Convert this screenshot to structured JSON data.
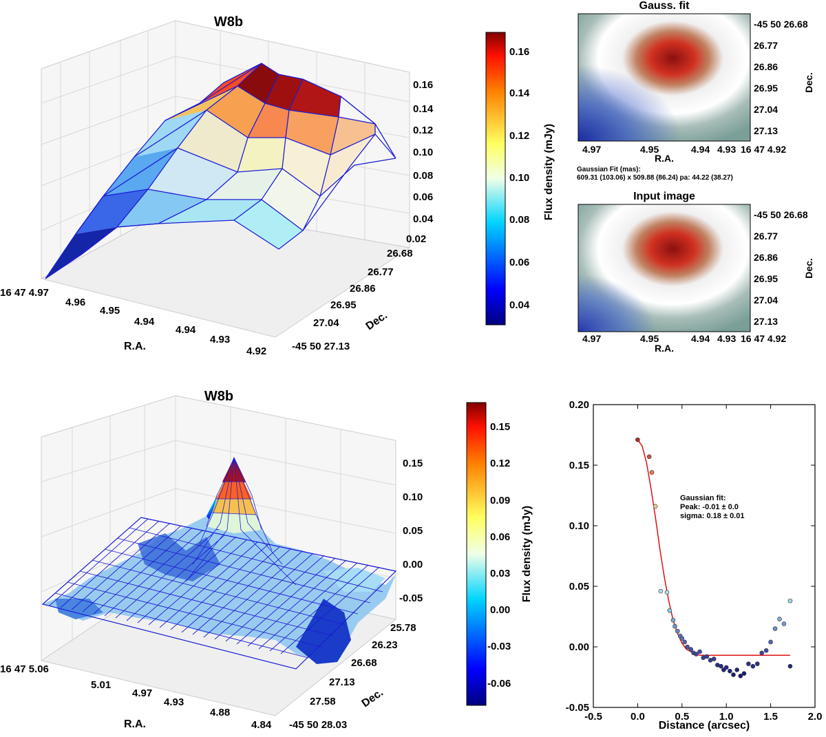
{
  "colors": {
    "wire": "#1c1cd6",
    "fit_line": "#e01010",
    "grid": "#d8d8d8",
    "pane": "#f4f4f4"
  },
  "top_surface": {
    "title": "W8b",
    "xlabel": "R.A.",
    "ylabel": "Dec.",
    "ra_ticks": [
      "16 47 4.97",
      "4.96",
      "4.95",
      "4.94",
      "4.94",
      "4.93",
      "4.92"
    ],
    "dec_ticks": [
      "26.68",
      "26.77",
      "26.86",
      "26.95",
      "27.04",
      "-45 50 27.13"
    ],
    "z_ticks": [
      "0.16",
      "0.14",
      "0.12",
      "0.10",
      "0.08",
      "0.06",
      "0.04",
      "0.02"
    ]
  },
  "top_colorbar": {
    "label": "Flux density (mJy)",
    "ticks": [
      "0.16",
      "0.14",
      "0.12",
      "0.10",
      "0.08",
      "0.06",
      "0.04"
    ]
  },
  "gauss_fit_panel": {
    "title": "Gauss. fit",
    "xlabel": "R.A.",
    "ylabel": "Dec.",
    "x_ticks": [
      "4.97",
      "4.95",
      "4.94",
      "4.93",
      "16 47 4.92"
    ],
    "y_ticks": [
      "-45 50 26.68",
      "26.77",
      "26.86",
      "26.95",
      "27.04",
      "27.13"
    ],
    "fit_caption_1": "Gaussian Fit (mas):",
    "fit_caption_2": "609.31 (103.06) x 509.88 (86.24) pa: 44.22 (38.27)"
  },
  "input_panel": {
    "title": "Input image",
    "xlabel": "R.A.",
    "ylabel": "Dec.",
    "x_ticks": [
      "4.97",
      "4.95",
      "4.94",
      "4.93",
      "16 47 4.92"
    ],
    "y_ticks": [
      "-45 50 26.68",
      "26.77",
      "26.86",
      "26.95",
      "27.04",
      "27.13"
    ]
  },
  "bottom_surface": {
    "title": "W8b",
    "xlabel": "R.A.",
    "ylabel": "Dec.",
    "ra_ticks": [
      "16 47 5.06",
      "5.01",
      "4.97",
      "4.93",
      "4.88",
      "4.84"
    ],
    "dec_ticks": [
      "25.78",
      "26.23",
      "26.68",
      "27.13",
      "27.58",
      "-45 50 28.03"
    ],
    "z_ticks": [
      "0.15",
      "0.10",
      "0.05",
      "0.00",
      "-0.05"
    ]
  },
  "bottom_colorbar": {
    "label": "Flux density (mJy)",
    "ticks": [
      "0.15",
      "0.12",
      "0.09",
      "0.06",
      "0.03",
      "0.00",
      "-0.03",
      "-0.06"
    ]
  },
  "chart_data": [
    {
      "type": "scatter",
      "title": "",
      "xlabel": "Distance (arcsec)",
      "ylabel": "",
      "xlim": [
        -0.5,
        2.0
      ],
      "ylim": [
        -0.05,
        0.2
      ],
      "x_ticks": [
        "-0.5",
        "0.0",
        "0.5",
        "1.0",
        "1.5",
        "2.0"
      ],
      "y_ticks": [
        "0.20",
        "0.15",
        "0.10",
        "0.05",
        "0.00",
        "-0.05"
      ],
      "x": [
        0.0,
        0.13,
        0.16,
        0.2,
        0.26,
        0.33,
        0.36,
        0.4,
        0.42,
        0.45,
        0.48,
        0.5,
        0.53,
        0.56,
        0.6,
        0.63,
        0.66,
        0.7,
        0.74,
        0.78,
        0.82,
        0.86,
        0.9,
        0.94,
        0.97,
        1.0,
        1.04,
        1.08,
        1.12,
        1.16,
        1.2,
        1.25,
        1.3,
        1.35,
        1.4,
        1.45,
        1.5,
        1.55,
        1.6,
        1.65,
        1.72,
        1.72
      ],
      "y": [
        0.171,
        0.157,
        0.144,
        0.116,
        0.046,
        0.045,
        0.03,
        0.022,
        0.017,
        0.013,
        0.009,
        0.007,
        0.004,
        0.0,
        -0.002,
        -0.005,
        -0.006,
        -0.004,
        -0.009,
        -0.008,
        -0.011,
        -0.01,
        -0.015,
        -0.016,
        -0.019,
        -0.017,
        -0.02,
        -0.023,
        -0.019,
        -0.024,
        -0.022,
        -0.014,
        -0.016,
        -0.014,
        -0.005,
        -0.003,
        0.004,
        0.015,
        0.023,
        0.019,
        0.038,
        -0.016
      ],
      "annotation": [
        "Gaussian fit:",
        "Peak: -0.01 ± 0.0",
        "sigma: 0.18 ± 0.01"
      ],
      "fit_curve": {
        "x": [
          0.0,
          0.05,
          0.1,
          0.15,
          0.2,
          0.25,
          0.3,
          0.35,
          0.4,
          0.45,
          0.5,
          0.55,
          0.6,
          0.65,
          0.7,
          0.8,
          1.0,
          1.3,
          1.72
        ],
        "y": [
          0.171,
          0.166,
          0.152,
          0.131,
          0.107,
          0.081,
          0.058,
          0.038,
          0.022,
          0.011,
          0.003,
          -0.002,
          -0.004,
          -0.006,
          -0.007,
          -0.007,
          -0.007,
          -0.007,
          -0.007
        ]
      }
    }
  ]
}
